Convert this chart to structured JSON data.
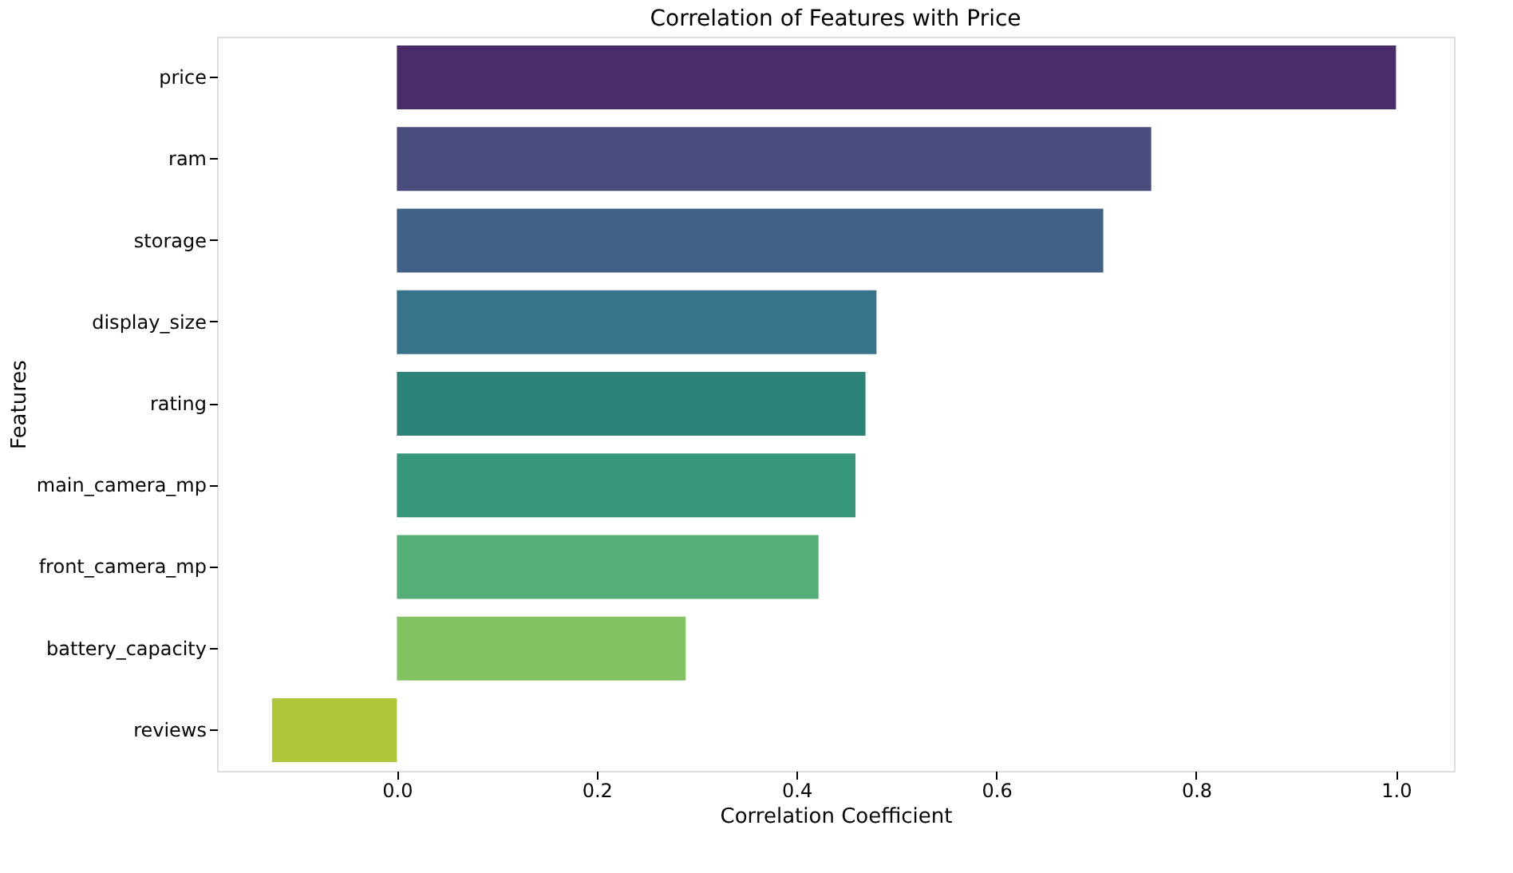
{
  "chart_data": {
    "type": "bar",
    "orientation": "horizontal",
    "title": "Correlation of Features with Price",
    "xlabel": "Correlation Coefficient",
    "ylabel": "Features",
    "categories": [
      "price",
      "ram",
      "storage",
      "display_size",
      "rating",
      "main_camera_mp",
      "front_camera_mp",
      "battery_capacity",
      "reviews"
    ],
    "values": [
      1.0,
      0.755,
      0.707,
      0.48,
      0.469,
      0.459,
      0.422,
      0.289,
      -0.125
    ],
    "colors": [
      "#4b2c6b",
      "#4a4c7d",
      "#416187",
      "#37748a",
      "#2e8379",
      "#36977d",
      "#54b076",
      "#82c262",
      "#afc83b"
    ],
    "xlim": [
      -0.18,
      1.058
    ],
    "xticks": [
      {
        "value": 0,
        "label": "0.0"
      },
      0.2,
      0.4,
      0.6,
      0.8,
      {
        "value": 1,
        "label": "1.0"
      }
    ],
    "grid": false
  }
}
